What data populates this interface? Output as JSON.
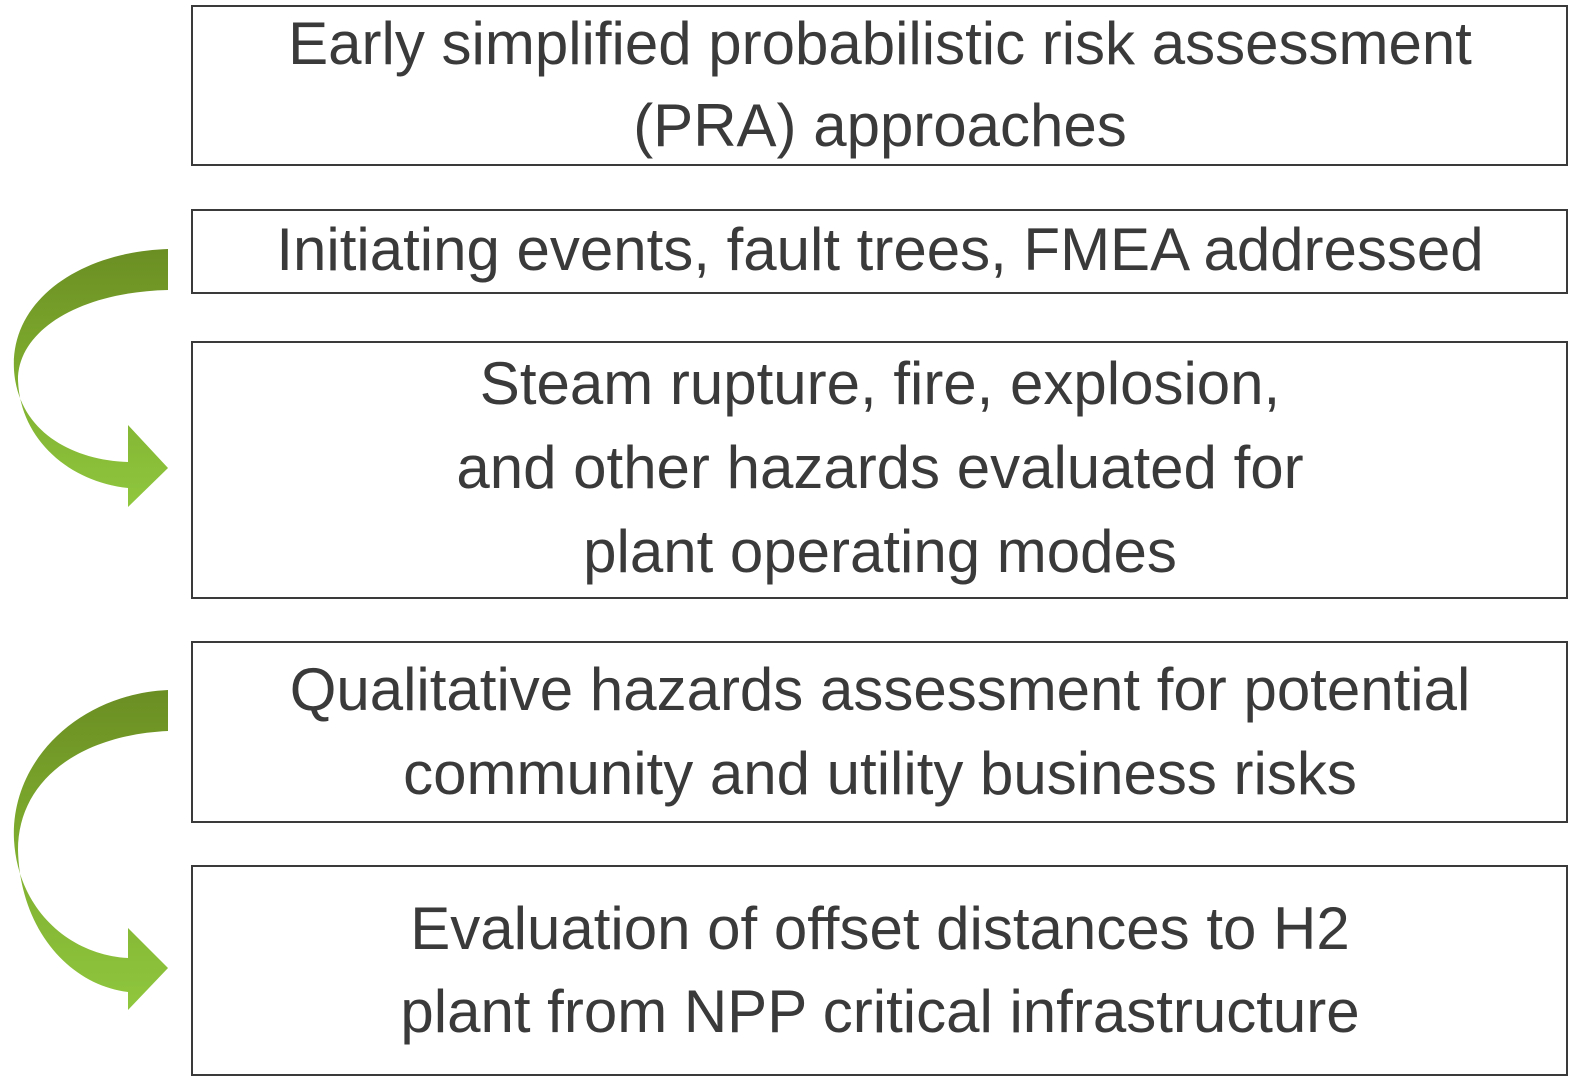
{
  "boxes": [
    {
      "lines": [
        "Early simplified probabilistic risk assessment",
        "(PRA) approaches"
      ]
    },
    {
      "lines": [
        "Initiating events, fault trees, FMEA addressed"
      ]
    },
    {
      "lines": [
        "Steam rupture, fire, explosion,",
        "and other hazards evaluated for",
        "plant operating modes"
      ]
    },
    {
      "lines": [
        "Qualitative hazards assessment for potential",
        "community and utility business risks"
      ]
    },
    {
      "lines": [
        "Evaluation of offset distances to H2",
        "plant from NPP critical infrastructure"
      ]
    }
  ]
}
